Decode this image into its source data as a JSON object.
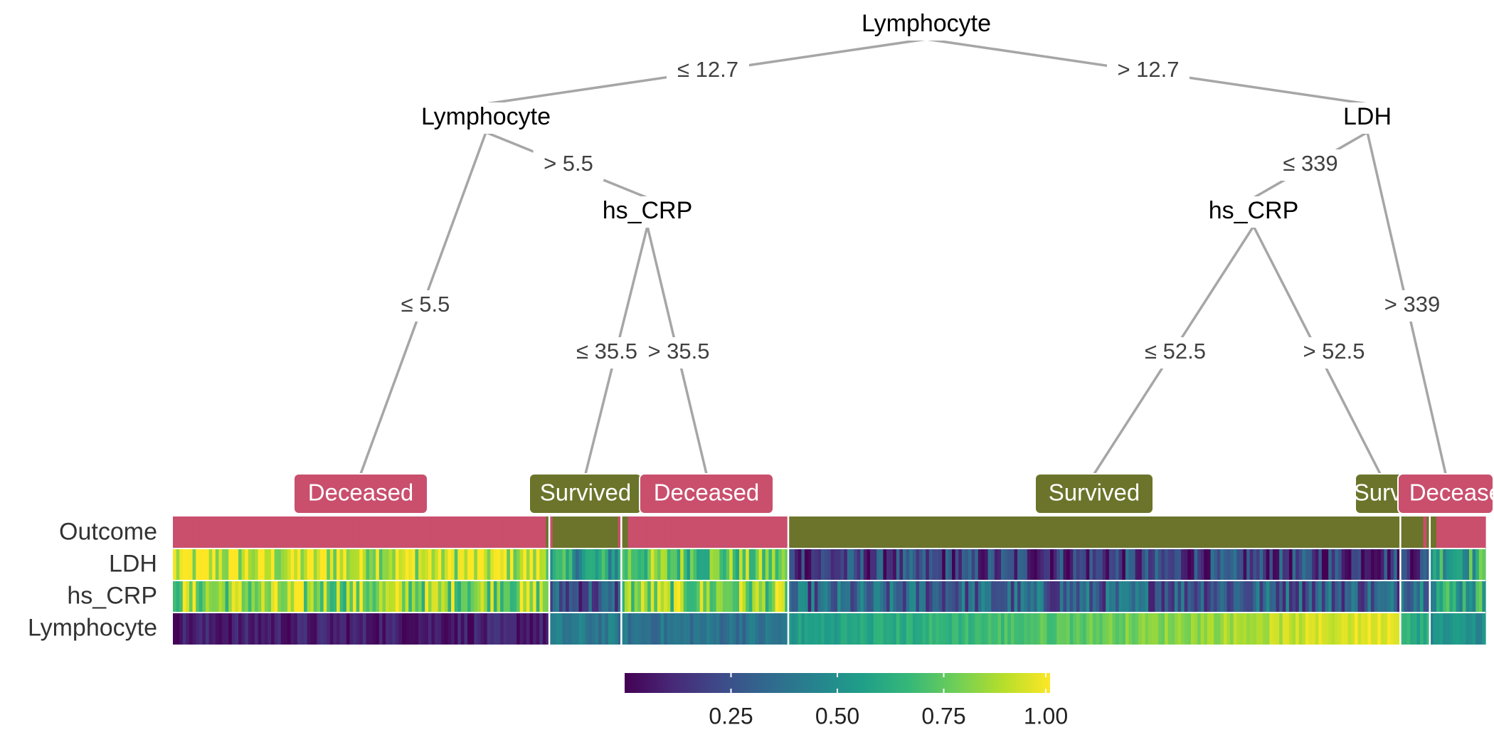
{
  "chart_data": {
    "type": "heatmap",
    "title": "",
    "colors": {
      "deceased": "#c94f6d",
      "survived": "#6b742a",
      "edge": "#a6a6a6",
      "viridis": [
        "#440154",
        "#482878",
        "#3e4a89",
        "#31688e",
        "#26828e",
        "#1f9e89",
        "#35b779",
        "#6ece58",
        "#b5de2b",
        "#fde725"
      ]
    },
    "tree": {
      "nodes": [
        {
          "id": "n1",
          "label": "Lymphocyte"
        },
        {
          "id": "n2",
          "label": "Lymphocyte"
        },
        {
          "id": "n3",
          "label": "hs_CRP"
        },
        {
          "id": "n4",
          "label": "LDH"
        },
        {
          "id": "n5",
          "label": "hs_CRP"
        }
      ],
      "edges": [
        {
          "from": "n1",
          "to": "n2",
          "label": "≤ 12.7"
        },
        {
          "from": "n1",
          "to": "n4",
          "label": "> 12.7"
        },
        {
          "from": "n2",
          "to": "leaf1",
          "label": "≤ 5.5"
        },
        {
          "from": "n2",
          "to": "n3",
          "label": "> 5.5"
        },
        {
          "from": "n3",
          "to": "leaf2",
          "label": "≤ 35.5"
        },
        {
          "from": "n3",
          "to": "leaf3",
          "label": "> 35.5"
        },
        {
          "from": "n4",
          "to": "n5",
          "label": "≤ 339"
        },
        {
          "from": "n4",
          "to": "leaf6",
          "label": "> 339"
        },
        {
          "from": "n5",
          "to": "leaf4",
          "label": "≤ 52.5"
        },
        {
          "from": "n5",
          "to": "leaf5",
          "label": "> 52.5"
        }
      ],
      "leaves": [
        {
          "id": "leaf1",
          "label": "Deceased",
          "class": "deceased"
        },
        {
          "id": "leaf2",
          "label": "Survived",
          "class": "survived"
        },
        {
          "id": "leaf3",
          "label": "Deceased",
          "class": "deceased"
        },
        {
          "id": "leaf4",
          "label": "Survived",
          "class": "survived"
        },
        {
          "id": "leaf5",
          "label": "Survived",
          "class": "survived"
        },
        {
          "id": "leaf6",
          "label": "Deceased",
          "class": "deceased"
        }
      ]
    },
    "heatmap": {
      "rows": [
        "Outcome",
        "LDH",
        "hs_CRP",
        "Lymphocyte"
      ],
      "leaf_sample_counts": [
        115,
        22,
        51,
        187,
        9,
        17
      ],
      "features": {
        "LDH": [
          0.92,
          0.55,
          0.75,
          0.18,
          0.2,
          0.62
        ],
        "hs_CRP": [
          0.82,
          0.25,
          0.8,
          0.3,
          0.45,
          0.6
        ],
        "Lymphocyte": [
          0.08,
          0.4,
          0.38,
          0.72,
          0.62,
          0.5
        ]
      },
      "outcome_deceased_fraction": [
        0.97,
        0.15,
        0.95,
        0.0,
        0.2,
        0.9
      ]
    },
    "colorbar": {
      "ticks": [
        "0.25",
        "0.50",
        "0.75",
        "1.00"
      ],
      "tick_values": [
        0.25,
        0.5,
        0.75,
        1.0
      ],
      "range": [
        0,
        1
      ]
    }
  }
}
